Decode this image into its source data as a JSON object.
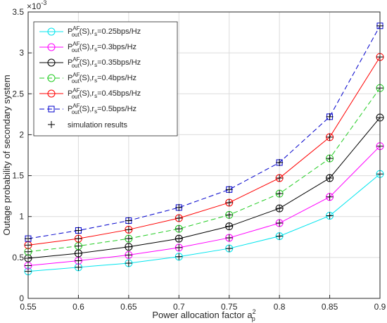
{
  "chart_data": {
    "type": "line",
    "xlabel_main": "Power allocation factor a",
    "xlabel_sup": "2",
    "xlabel_sub": "p",
    "ylabel": "Outage probability of secondary system",
    "y_multiplier": "×10",
    "y_multiplier_exp": "-3",
    "xlim": [
      0.55,
      0.9
    ],
    "ylim": [
      0,
      3.5
    ],
    "grid": true,
    "legend_position": "top-left",
    "x": [
      0.55,
      0.6,
      0.65,
      0.7,
      0.75,
      0.8,
      0.85,
      0.9
    ],
    "x_ticks": [
      "0.55",
      "0.6",
      "0.65",
      "0.7",
      "0.75",
      "0.8",
      "0.85",
      "0.9"
    ],
    "y_ticks": [
      "0",
      "0.5",
      "1",
      "1.5",
      "2",
      "2.5",
      "3",
      "3.5"
    ],
    "series": [
      {
        "label_P": "P",
        "label_sup": "AF",
        "label_sub": "out",
        "label_S": "(S),r",
        "label_rsub": "s",
        "label_rest": "=0.25bps/Hz",
        "color": "#00e5ee",
        "dash": "solid",
        "marker": "circle",
        "values": [
          0.33,
          0.38,
          0.43,
          0.51,
          0.61,
          0.76,
          1.01,
          1.52
        ]
      },
      {
        "label_P": "P",
        "label_sup": "AF",
        "label_sub": "out",
        "label_S": "(S),r",
        "label_rsub": "s",
        "label_rest": "=0.3bps/Hz",
        "color": "#ff00ff",
        "dash": "solid",
        "marker": "circle",
        "values": [
          0.4,
          0.46,
          0.53,
          0.62,
          0.74,
          0.92,
          1.24,
          1.86
        ]
      },
      {
        "label_P": "P",
        "label_sup": "AF",
        "label_sub": "out",
        "label_S": "(S),r",
        "label_rsub": "s",
        "label_rest": "=0.35bps/Hz",
        "color": "#000000",
        "dash": "solid",
        "marker": "circle",
        "values": [
          0.49,
          0.55,
          0.63,
          0.73,
          0.88,
          1.1,
          1.47,
          2.21
        ]
      },
      {
        "label_P": "P",
        "label_sup": "AF",
        "label_sub": "out",
        "label_S": "(S),r",
        "label_rsub": "s",
        "label_rest": "=0.4bps/Hz",
        "color": "#22cc22",
        "dash": "dashed",
        "marker": "circle",
        "values": [
          0.57,
          0.64,
          0.73,
          0.85,
          1.02,
          1.28,
          1.71,
          2.57
        ]
      },
      {
        "label_P": "P",
        "label_sup": "AF",
        "label_sub": "out",
        "label_S": "(S),r",
        "label_rsub": "s",
        "label_rest": "=0.45bps/Hz",
        "color": "#ff0000",
        "dash": "solid",
        "marker": "circle",
        "values": [
          0.65,
          0.73,
          0.84,
          0.98,
          1.17,
          1.47,
          1.97,
          2.95
        ]
      },
      {
        "label_P": "P",
        "label_sup": "AF",
        "label_sub": "out",
        "label_S": "(S),r",
        "label_rsub": "s",
        "label_rest": "=0.5bps/Hz",
        "color": "#0000cc",
        "dash": "dashed",
        "marker": "square",
        "values": [
          0.73,
          0.83,
          0.95,
          1.11,
          1.33,
          1.66,
          2.22,
          3.33
        ]
      }
    ],
    "simulation_label": "simulation results",
    "simulation_color": "#000000"
  }
}
